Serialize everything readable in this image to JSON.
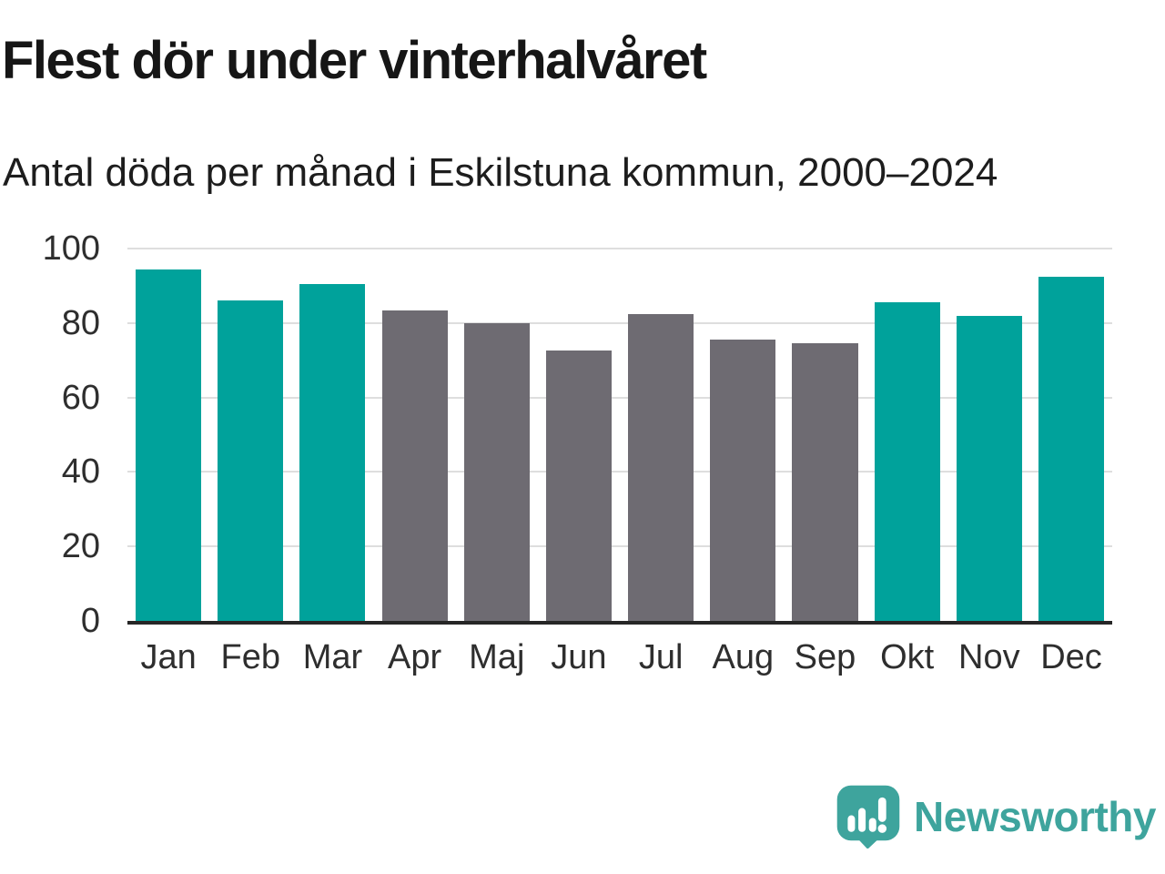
{
  "header": {
    "title": "Flest dör under vinterhalvåret",
    "subtitle": "Antal döda per månad i Eskilstuna kommun, 2000–2024"
  },
  "chart_data": {
    "type": "bar",
    "title": "Flest dör under vinterhalvåret",
    "subtitle": "Antal döda per månad i Eskilstuna kommun, 2000–2024",
    "categories": [
      "Jan",
      "Feb",
      "Mar",
      "Apr",
      "Maj",
      "Jun",
      "Jul",
      "Aug",
      "Sep",
      "Okt",
      "Nov",
      "Dec"
    ],
    "values": [
      94.5,
      86,
      90.5,
      83.5,
      80,
      72.5,
      82.5,
      75.5,
      74.5,
      85.5,
      82,
      92.5
    ],
    "highlighted": [
      true,
      true,
      true,
      false,
      false,
      false,
      false,
      false,
      false,
      true,
      true,
      true
    ],
    "xlabel": "",
    "ylabel": "",
    "ylim": [
      0,
      100
    ],
    "yticks": [
      0,
      20,
      40,
      60,
      80,
      100
    ],
    "grid": true,
    "legend": "none",
    "colors": {
      "winter_teal": "#00a29b",
      "summer_gray": "#6e6b72",
      "gridline": "#dedede",
      "axis_line": "#262626",
      "tick_text": "#2e2e2e"
    }
  },
  "footer": {
    "brand": "Newsworthy",
    "brand_color": "#3ea49d",
    "brand_icon": "speech-bubble-bar-chart-exclamation"
  }
}
